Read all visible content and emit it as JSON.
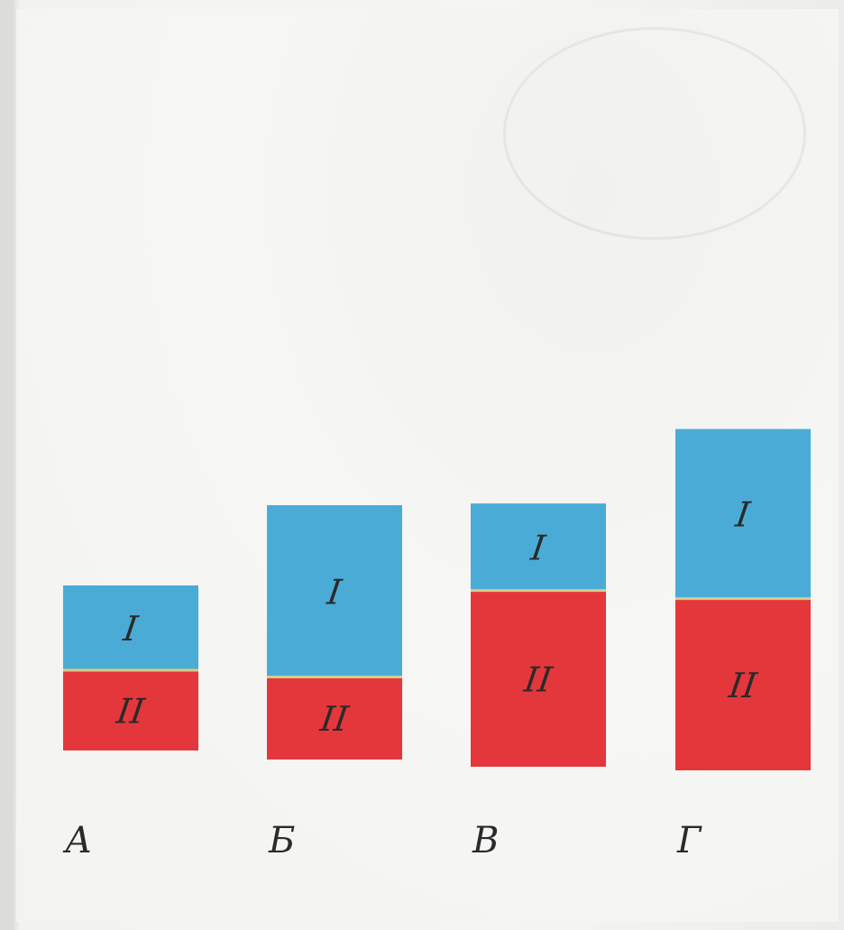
{
  "chart_data": {
    "type": "bar",
    "stacked": true,
    "categories": [
      "А",
      "Б",
      "В",
      "Г"
    ],
    "series": [
      {
        "name": "II",
        "values": [
          36,
          37,
          79,
          77
        ],
        "color": "#e4373c"
      },
      {
        "name": "I",
        "values": [
          38,
          77,
          39,
          76
        ],
        "color": "#4aacd6"
      }
    ],
    "segment_labels": {
      "I": "I",
      "II": "II"
    },
    "axis": {
      "visible": false,
      "grid": false
    },
    "ylim": [
      0,
      165
    ],
    "title": "",
    "xlabel": "",
    "ylabel": ""
  }
}
